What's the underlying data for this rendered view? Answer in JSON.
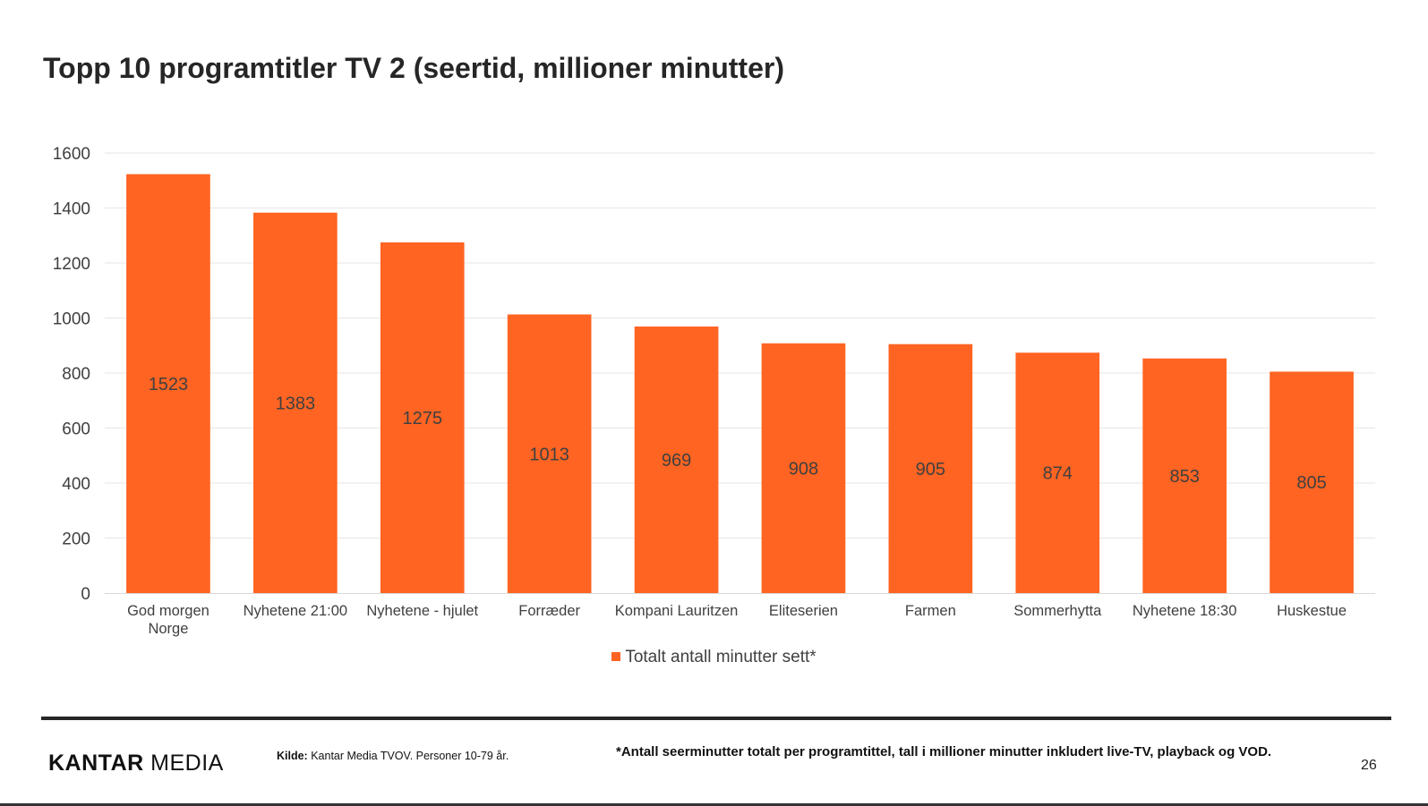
{
  "slide": {
    "title": "Topp 10 programtitler TV 2 (seertid, millioner minutter)",
    "source_label": "Kilde:",
    "source_text": "Kantar Media TVOV. Personer 10-79 år.",
    "footnote": "*Antall seerminutter totalt per programtittel, tall i millioner minutter inkludert live-TV, playback og VOD.",
    "page_number": "26",
    "logo_bold": "KANTAR",
    "logo_light": "MEDIA"
  },
  "chart_data": {
    "type": "bar",
    "title": "Topp 10 programtitler TV 2 (seertid, millioner minutter)",
    "categories": [
      "God morgen Norge",
      "Nyhetene 21:00",
      "Nyhetene - hjulet",
      "Forræder",
      "Kompani Lauritzen",
      "Eliteserien",
      "Farmen",
      "Sommerhytta",
      "Nyhetene 18:30",
      "Huskestue"
    ],
    "category_lines": [
      [
        "God morgen",
        "Norge"
      ],
      [
        "Nyhetene 21:00"
      ],
      [
        "Nyhetene - hjulet"
      ],
      [
        "Forræder"
      ],
      [
        "Kompani Lauritzen"
      ],
      [
        "Eliteserien"
      ],
      [
        "Farmen"
      ],
      [
        "Sommerhytta"
      ],
      [
        "Nyhetene 18:30"
      ],
      [
        "Huskestue"
      ]
    ],
    "series": [
      {
        "name": "Totalt antall minutter sett*",
        "color": "#ff6422",
        "values": [
          1523,
          1383,
          1275,
          1013,
          969,
          908,
          905,
          874,
          853,
          805
        ]
      }
    ],
    "yticks": [
      0,
      200,
      400,
      600,
      800,
      1000,
      1200,
      1400,
      1600
    ],
    "ylim": [
      0,
      1600
    ],
    "xlabel": "",
    "ylabel": "",
    "grid": true,
    "legend_position": "bottom",
    "data_labels": "center"
  }
}
